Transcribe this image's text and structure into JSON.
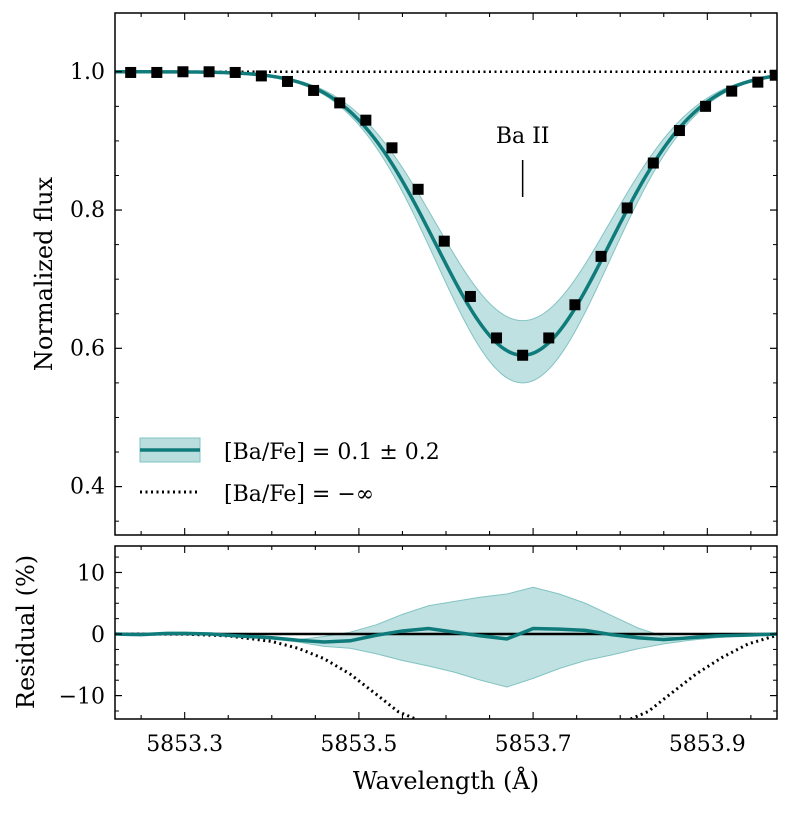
{
  "chart_data": [
    {
      "type": "line",
      "panel": "top",
      "xlabel": "",
      "ylabel": "Normalized flux",
      "xlim": [
        5853.22,
        5853.98
      ],
      "ylim": [
        0.33,
        1.085
      ],
      "yticks": [
        0.4,
        0.6,
        0.8,
        1.0
      ],
      "ytick_labels": [
        "0.4",
        "0.6",
        "0.8",
        "1.0"
      ],
      "annotation": {
        "text": "Ba II",
        "x": 5853.688
      },
      "model": {
        "name": "[Ba/Fe] = 0.1 ± 0.2",
        "color": "#0f7b7b",
        "center": 5853.688,
        "depth": 0.41,
        "sigma": 0.1
      },
      "band": {
        "depth_low": 0.36,
        "depth_high": 0.45,
        "color": "#82c3c3"
      },
      "continuum": {
        "name": "[Ba/Fe] = −∞",
        "value": 1.0
      },
      "observed": {
        "x": [
          5853.238,
          5853.268,
          5853.298,
          5853.328,
          5853.358,
          5853.388,
          5853.418,
          5853.448,
          5853.478,
          5853.508,
          5853.538,
          5853.568,
          5853.598,
          5853.628,
          5853.658,
          5853.688,
          5853.718,
          5853.748,
          5853.778,
          5853.808,
          5853.838,
          5853.868,
          5853.898,
          5853.928,
          5853.958,
          5853.978
        ],
        "y": [
          0.999,
          0.999,
          1.0,
          1.0,
          0.999,
          0.994,
          0.986,
          0.973,
          0.955,
          0.93,
          0.89,
          0.83,
          0.755,
          0.675,
          0.615,
          0.59,
          0.615,
          0.663,
          0.733,
          0.803,
          0.868,
          0.915,
          0.95,
          0.972,
          0.985,
          0.995
        ]
      },
      "legend": [
        "[Ba/Fe] = 0.1 ± 0.2",
        "[Ba/Fe] = −∞"
      ]
    },
    {
      "type": "line",
      "panel": "bottom",
      "xlabel": "Wavelength (Å)",
      "ylabel": "Residual (%)",
      "xlim": [
        5853.22,
        5853.98
      ],
      "ylim": [
        -13.8,
        14.3
      ],
      "xticks": [
        5853.3,
        5853.5,
        5853.7,
        5853.9
      ],
      "xtick_labels": [
        "5853.3",
        "5853.5",
        "5853.7",
        "5853.9"
      ],
      "yticks": [
        -10,
        0,
        10
      ],
      "ytick_labels": [
        "−10",
        "0",
        "10"
      ],
      "zero_line": 0,
      "residual": {
        "x": [
          5853.22,
          5853.25,
          5853.28,
          5853.3,
          5853.33,
          5853.36,
          5853.4,
          5853.43,
          5853.46,
          5853.49,
          5853.52,
          5853.55,
          5853.58,
          5853.61,
          5853.64,
          5853.67,
          5853.7,
          5853.73,
          5853.76,
          5853.79,
          5853.82,
          5853.85,
          5853.88,
          5853.91,
          5853.94,
          5853.98
        ],
        "y": [
          0,
          -0.1,
          0.1,
          0.1,
          0,
          -0.3,
          -0.6,
          -1.0,
          -1.3,
          -1.1,
          -0.2,
          0.5,
          0.9,
          0.3,
          -0.3,
          -0.8,
          0.9,
          0.8,
          0.6,
          -0.1,
          -0.6,
          -0.9,
          -0.6,
          -0.3,
          -0.2,
          0
        ]
      },
      "band_upper": [
        0,
        0,
        0.1,
        0.1,
        0,
        -0.3,
        -0.6,
        -0.9,
        -0.4,
        0.3,
        1.5,
        3.2,
        4.6,
        5.3,
        6.0,
        6.5,
        7.6,
        6.5,
        5.0,
        3.0,
        1.0,
        -0.4,
        -0.6,
        -0.4,
        -0.2,
        0
      ],
      "band_lower": [
        0,
        -0.1,
        0,
        0,
        -0.1,
        -0.3,
        -0.8,
        -1.3,
        -2.0,
        -2.3,
        -3.2,
        -4.3,
        -5.2,
        -6.2,
        -7.5,
        -8.6,
        -7.2,
        -5.6,
        -4.3,
        -3.4,
        -2.4,
        -1.6,
        -1.0,
        -0.6,
        -0.3,
        0
      ],
      "no_ba_residual": {
        "x": [
          5853.22,
          5853.3,
          5853.35,
          5853.4,
          5853.43,
          5853.46,
          5853.49,
          5853.52,
          5853.545,
          5853.565,
          5853.812,
          5853.832,
          5853.857,
          5853.887,
          5853.917,
          5853.947,
          5853.98
        ],
        "y": [
          0,
          -0.01,
          -0.3,
          -1.2,
          -2.3,
          -4.0,
          -6.5,
          -9.8,
          -12.6,
          -13.8,
          -13.8,
          -12.6,
          -9.8,
          -6.5,
          -3.8,
          -1.6,
          -0.2
        ]
      }
    }
  ],
  "colors": {
    "model": "#0f7b7b",
    "band": "#82c3c3",
    "points": "#000000"
  }
}
